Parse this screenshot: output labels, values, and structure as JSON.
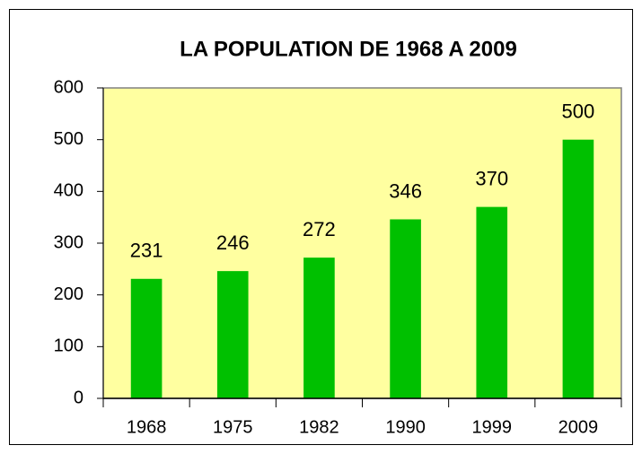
{
  "chart_data": {
    "type": "bar",
    "title": "LA POPULATION DE 1968 A 2009",
    "categories": [
      "1968",
      "1975",
      "1982",
      "1990",
      "1999",
      "2009"
    ],
    "values": [
      231,
      246,
      272,
      346,
      370,
      500
    ],
    "color": "#00c000",
    "plot_background": "#ffffa0",
    "ylim": [
      0,
      600
    ],
    "yticks": [
      0,
      100,
      200,
      300,
      400,
      500,
      600
    ],
    "grid": false
  }
}
